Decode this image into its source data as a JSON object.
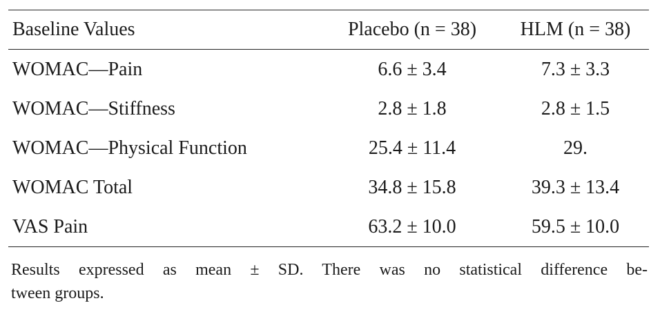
{
  "table": {
    "headers": {
      "label": "Baseline Values",
      "placebo": "Placebo (n = 38)",
      "hlm": "HLM (n = 38)"
    },
    "rows": [
      {
        "label": "WOMAC—Pain",
        "placebo": "6.6 ± 3.4",
        "hlm": "7.3 ± 3.3"
      },
      {
        "label": "WOMAC—Stiffness",
        "placebo": "2.8 ± 1.8",
        "hlm": "2.8 ± 1.5"
      },
      {
        "label": "WOMAC—Physical Function",
        "placebo": "25.4 ± 11.4",
        "hlm": "29."
      },
      {
        "label": "WOMAC Total",
        "placebo": "34.8 ± 15.8",
        "hlm": "39.3 ± 13.4"
      },
      {
        "label": "VAS Pain",
        "placebo": "63.2 ± 10.0",
        "hlm": "59.5 ± 10.0"
      }
    ]
  },
  "footnote": {
    "line1": "Results expressed as mean ± SD. There was no statistical difference be-",
    "line2": "tween groups."
  }
}
